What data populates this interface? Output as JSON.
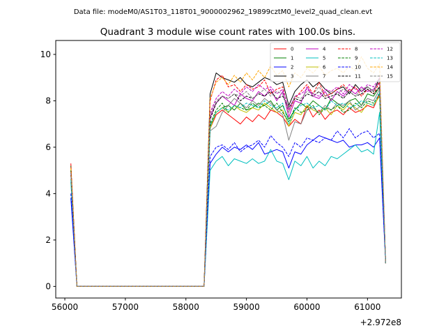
{
  "figure": {
    "suptitle": "Data file: modeM0/AS1T03_118T01_9000002962_19899cztM0_level2_quad_clean.evt"
  },
  "chart_data": {
    "type": "line",
    "title": "Quadrant 3 module wise count rates with 100.0s bins.",
    "xlabel": "",
    "ylabel": "",
    "x_offset_text": "+2.972e8",
    "xlim": [
      55850,
      61560
    ],
    "ylim": [
      -0.5,
      10.6
    ],
    "x_ticks": [
      56000,
      57000,
      58000,
      59000,
      60000,
      61000
    ],
    "x_tick_labels": [
      "56000",
      "57000",
      "58000",
      "59000",
      "60000",
      "61000"
    ],
    "y_ticks": [
      0,
      2,
      4,
      6,
      8,
      10
    ],
    "y_tick_labels": [
      "0",
      "2",
      "4",
      "6",
      "8",
      "10"
    ],
    "grid": false,
    "legend": {
      "placement": "top-right",
      "columns": 4
    },
    "x": [
      56100,
      56200,
      56300,
      56400,
      56500,
      56600,
      56700,
      56800,
      56900,
      57000,
      57100,
      57200,
      57300,
      57400,
      57500,
      57600,
      57700,
      57800,
      57900,
      58000,
      58100,
      58200,
      58300,
      58400,
      58500,
      58600,
      58700,
      58800,
      58900,
      59000,
      59100,
      59200,
      59300,
      59400,
      59500,
      59600,
      59700,
      59800,
      59900,
      60000,
      60100,
      60200,
      60300,
      60400,
      60500,
      60600,
      60700,
      60800,
      60900,
      61000,
      61100,
      61200,
      61300
    ],
    "series": [
      {
        "name": "0",
        "color": "#ff0000",
        "dash": "solid",
        "values": [
          5.2,
          0,
          0,
          0,
          0,
          0,
          0,
          0,
          0,
          0,
          0,
          0,
          0,
          0,
          0,
          0,
          0,
          0,
          0,
          0,
          0,
          0,
          0,
          6.8,
          7.4,
          7.6,
          7.4,
          7.2,
          7.0,
          7.3,
          7.1,
          7.4,
          7.2,
          7.6,
          7.5,
          7.3,
          6.9,
          7.2,
          7.0,
          7.8,
          7.3,
          7.6,
          7.2,
          7.5,
          7.6,
          7.4,
          7.7,
          7.5,
          7.6,
          7.8,
          7.7,
          8.3,
          1.0
        ]
      },
      {
        "name": "1",
        "color": "#008000",
        "dash": "solid",
        "values": [
          5.2,
          0,
          0,
          0,
          0,
          0,
          0,
          0,
          0,
          0,
          0,
          0,
          0,
          0,
          0,
          0,
          0,
          0,
          0,
          0,
          0,
          0,
          0,
          6.9,
          7.5,
          7.7,
          7.8,
          7.6,
          7.9,
          7.6,
          7.7,
          7.9,
          7.8,
          8.0,
          7.6,
          7.8,
          7.2,
          7.6,
          7.9,
          7.7,
          8.0,
          7.8,
          7.6,
          8.1,
          7.9,
          7.7,
          8.0,
          8.1,
          7.8,
          8.3,
          8.2,
          8.6,
          1.0
        ]
      },
      {
        "name": "2",
        "color": "#0000ff",
        "dash": "solid",
        "values": [
          3.8,
          0,
          0,
          0,
          0,
          0,
          0,
          0,
          0,
          0,
          0,
          0,
          0,
          0,
          0,
          0,
          0,
          0,
          0,
          0,
          0,
          0,
          0,
          5.3,
          5.7,
          6.0,
          5.8,
          6.0,
          5.9,
          6.1,
          5.9,
          6.2,
          5.7,
          5.8,
          5.9,
          5.8,
          5.1,
          5.8,
          5.7,
          6.1,
          6.3,
          6.5,
          6.4,
          6.3,
          6.2,
          6.3,
          6.0,
          6.1,
          6.1,
          6.2,
          6.0,
          6.4,
          1.0
        ]
      },
      {
        "name": "3",
        "color": "#000000",
        "dash": "solid",
        "values": [
          5.0,
          0,
          0,
          0,
          0,
          0,
          0,
          0,
          0,
          0,
          0,
          0,
          0,
          0,
          0,
          0,
          0,
          0,
          0,
          0,
          0,
          0,
          0,
          8.3,
          9.2,
          9.0,
          8.9,
          8.8,
          9.0,
          8.7,
          8.6,
          8.8,
          9.0,
          8.9,
          8.7,
          8.8,
          7.8,
          8.4,
          8.7,
          8.9,
          8.6,
          8.8,
          8.5,
          8.3,
          8.5,
          8.6,
          8.3,
          8.7,
          8.4,
          8.6,
          8.4,
          9.0,
          1.0
        ]
      },
      {
        "name": "4",
        "color": "#bf00bf",
        "dash": "solid",
        "values": [
          5.0,
          0,
          0,
          0,
          0,
          0,
          0,
          0,
          0,
          0,
          0,
          0,
          0,
          0,
          0,
          0,
          0,
          0,
          0,
          0,
          0,
          0,
          0,
          7.3,
          7.9,
          8.2,
          8.0,
          7.8,
          8.3,
          8.1,
          8.0,
          8.4,
          8.2,
          8.5,
          8.0,
          8.4,
          7.3,
          8.0,
          7.9,
          8.6,
          8.2,
          8.1,
          8.4,
          8.0,
          8.4,
          8.2,
          8.5,
          8.3,
          8.6,
          8.4,
          8.5,
          8.8,
          1.0
        ]
      },
      {
        "name": "5",
        "color": "#00bfbf",
        "dash": "solid",
        "values": [
          4.5,
          0,
          0,
          0,
          0,
          0,
          0,
          0,
          0,
          0,
          0,
          0,
          0,
          0,
          0,
          0,
          0,
          0,
          0,
          0,
          0,
          0,
          0,
          5.0,
          5.4,
          5.6,
          5.2,
          5.5,
          5.4,
          5.3,
          5.5,
          5.3,
          5.4,
          5.9,
          5.4,
          5.3,
          4.6,
          5.4,
          5.2,
          5.6,
          5.1,
          5.4,
          5.2,
          5.6,
          5.5,
          5.7,
          5.9,
          6.1,
          5.8,
          5.9,
          5.7,
          7.5,
          1.0
        ]
      },
      {
        "name": "6",
        "color": "#bfbf00",
        "dash": "solid",
        "values": [
          5.1,
          0,
          0,
          0,
          0,
          0,
          0,
          0,
          0,
          0,
          0,
          0,
          0,
          0,
          0,
          0,
          0,
          0,
          0,
          0,
          0,
          0,
          0,
          6.8,
          7.5,
          7.7,
          7.5,
          7.8,
          7.6,
          7.5,
          7.7,
          7.6,
          7.9,
          7.7,
          7.5,
          7.6,
          6.9,
          7.5,
          7.4,
          7.8,
          7.6,
          7.5,
          7.7,
          7.4,
          7.8,
          7.6,
          7.9,
          7.7,
          7.5,
          7.9,
          7.8,
          8.2,
          1.0
        ]
      },
      {
        "name": "7",
        "color": "#808080",
        "dash": "solid",
        "values": [
          5.0,
          0,
          0,
          0,
          0,
          0,
          0,
          0,
          0,
          0,
          0,
          0,
          0,
          0,
          0,
          0,
          0,
          0,
          0,
          0,
          0,
          0,
          0,
          6.7,
          6.9,
          7.5,
          7.8,
          8.1,
          7.9,
          7.7,
          8.0,
          7.8,
          8.1,
          7.9,
          7.6,
          7.4,
          6.3,
          7.1,
          7.0,
          7.6,
          7.7,
          7.5,
          7.8,
          7.6,
          7.9,
          7.8,
          8.0,
          7.6,
          7.8,
          8.1,
          8.0,
          8.5,
          1.0
        ]
      },
      {
        "name": "8",
        "color": "#ff0000",
        "dash": "dashed",
        "values": [
          5.3,
          0,
          0,
          0,
          0,
          0,
          0,
          0,
          0,
          0,
          0,
          0,
          0,
          0,
          0,
          0,
          0,
          0,
          0,
          0,
          0,
          0,
          0,
          8.0,
          8.9,
          9.1,
          8.6,
          8.7,
          8.4,
          8.7,
          8.5,
          8.6,
          8.9,
          8.3,
          8.5,
          8.6,
          7.5,
          8.1,
          8.4,
          8.7,
          8.3,
          8.8,
          8.2,
          8.3,
          8.5,
          8.7,
          8.4,
          8.6,
          8.2,
          8.5,
          8.3,
          8.8,
          1.0
        ]
      },
      {
        "name": "9",
        "color": "#008000",
        "dash": "dashed",
        "values": [
          5.0,
          0,
          0,
          0,
          0,
          0,
          0,
          0,
          0,
          0,
          0,
          0,
          0,
          0,
          0,
          0,
          0,
          0,
          0,
          0,
          0,
          0,
          0,
          7.0,
          7.6,
          7.9,
          7.5,
          7.8,
          7.7,
          7.6,
          7.9,
          7.7,
          7.8,
          7.6,
          7.9,
          7.5,
          7.1,
          7.7,
          7.5,
          7.6,
          7.8,
          7.4,
          7.7,
          7.6,
          7.8,
          7.5,
          7.6,
          7.9,
          7.7,
          8.0,
          7.9,
          8.3,
          1.0
        ]
      },
      {
        "name": "10",
        "color": "#0000ff",
        "dash": "dashed",
        "values": [
          4.0,
          0,
          0,
          0,
          0,
          0,
          0,
          0,
          0,
          0,
          0,
          0,
          0,
          0,
          0,
          0,
          0,
          0,
          0,
          0,
          0,
          0,
          0,
          5.6,
          6.0,
          6.1,
          5.9,
          6.2,
          5.8,
          6.0,
          6.1,
          6.3,
          6.0,
          6.5,
          6.2,
          6.0,
          5.6,
          6.2,
          6.0,
          6.4,
          6.3,
          6.2,
          6.4,
          6.3,
          6.7,
          6.4,
          6.8,
          6.4,
          6.6,
          6.7,
          6.4,
          6.6,
          1.0
        ]
      },
      {
        "name": "11",
        "color": "#000000",
        "dash": "dashed",
        "values": [
          4.8,
          0,
          0,
          0,
          0,
          0,
          0,
          0,
          0,
          0,
          0,
          0,
          0,
          0,
          0,
          0,
          0,
          0,
          0,
          0,
          0,
          0,
          0,
          7.2,
          7.9,
          8.2,
          8.1,
          8.3,
          8.0,
          8.2,
          8.1,
          8.3,
          8.2,
          8.4,
          8.1,
          8.2,
          7.7,
          8.1,
          8.0,
          8.3,
          8.2,
          8.4,
          8.1,
          8.2,
          8.3,
          8.1,
          8.4,
          8.2,
          8.3,
          8.5,
          8.3,
          8.6,
          1.0
        ]
      },
      {
        "name": "12",
        "color": "#bf00bf",
        "dash": "dashed",
        "values": [
          4.9,
          0,
          0,
          0,
          0,
          0,
          0,
          0,
          0,
          0,
          0,
          0,
          0,
          0,
          0,
          0,
          0,
          0,
          0,
          0,
          0,
          0,
          0,
          7.5,
          8.1,
          8.4,
          8.2,
          8.5,
          8.3,
          8.6,
          8.4,
          8.7,
          8.5,
          8.6,
          8.3,
          8.5,
          7.6,
          8.2,
          8.3,
          8.5,
          8.3,
          8.2,
          8.5,
          8.4,
          8.6,
          8.3,
          8.7,
          8.5,
          8.4,
          8.7,
          8.6,
          9.0,
          1.0
        ]
      },
      {
        "name": "13",
        "color": "#00bfbf",
        "dash": "dashed",
        "values": [
          4.6,
          0,
          0,
          0,
          0,
          0,
          0,
          0,
          0,
          0,
          0,
          0,
          0,
          0,
          0,
          0,
          0,
          0,
          0,
          0,
          0,
          0,
          0,
          6.9,
          7.5,
          7.7,
          7.6,
          7.8,
          7.7,
          7.9,
          7.8,
          7.7,
          8.0,
          7.8,
          7.7,
          7.9,
          7.0,
          7.6,
          7.8,
          7.9,
          7.7,
          7.8,
          7.6,
          8.0,
          7.8,
          7.9,
          7.7,
          7.8,
          8.0,
          7.9,
          7.8,
          8.4,
          1.0
        ]
      },
      {
        "name": "14",
        "color": "#ffa500",
        "dash": "dashed",
        "values": [
          5.1,
          0,
          0,
          0,
          0,
          0,
          0,
          0,
          0,
          0,
          0,
          0,
          0,
          0,
          0,
          0,
          0,
          0,
          0,
          0,
          0,
          0,
          0,
          8.1,
          8.8,
          9.0,
          8.7,
          9.1,
          8.8,
          9.2,
          8.9,
          9.3,
          9.0,
          9.5,
          9.1,
          9.3,
          8.6,
          9.2,
          9.0,
          9.4,
          9.2,
          9.5,
          9.1,
          9.3,
          9.4,
          9.2,
          9.5,
          9.3,
          9.9,
          9.4,
          9.2,
          9.6,
          1.0
        ]
      },
      {
        "name": "15",
        "color": "#808080",
        "dash": "dashed",
        "values": [
          4.9,
          0,
          0,
          0,
          0,
          0,
          0,
          0,
          0,
          0,
          0,
          0,
          0,
          0,
          0,
          0,
          0,
          0,
          0,
          0,
          0,
          0,
          0,
          7.4,
          8.0,
          8.2,
          8.1,
          8.3,
          8.2,
          8.4,
          8.1,
          8.3,
          8.5,
          8.2,
          8.4,
          8.3,
          7.5,
          8.2,
          8.1,
          8.4,
          8.3,
          8.6,
          8.2,
          8.4,
          8.3,
          8.5,
          8.4,
          8.2,
          8.5,
          8.6,
          8.4,
          8.9,
          1.0
        ]
      }
    ]
  }
}
